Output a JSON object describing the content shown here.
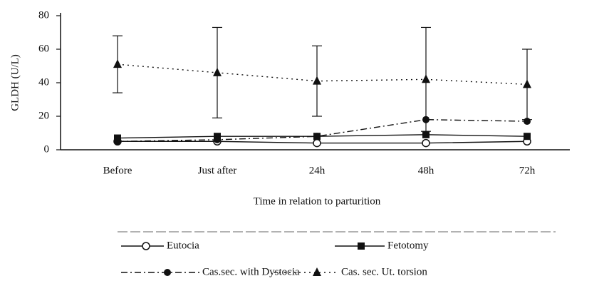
{
  "chart_data": {
    "type": "line",
    "y_label": "GLDH (U/L)",
    "x_label": "Time in relation to parturition",
    "categories": [
      "Before",
      "Just after",
      "24h",
      "48h",
      "72h"
    ],
    "ylim": [
      0,
      80
    ],
    "yticks": [
      0,
      20,
      40,
      60,
      80
    ],
    "series": [
      {
        "name": "Eutocia",
        "color": "#111111",
        "marker": "circle-open",
        "dash": "none",
        "values": [
          5,
          5,
          4,
          4,
          5
        ]
      },
      {
        "name": "Fetotomy",
        "color": "#111111",
        "marker": "square",
        "dash": "none",
        "values": [
          7,
          8,
          8,
          9,
          8
        ]
      },
      {
        "name": "Cas.sec. with Dystocia",
        "color": "#111111",
        "marker": "circle",
        "dash": "9,4,2,4",
        "values": [
          5,
          6,
          8,
          18,
          17
        ]
      },
      {
        "name": "Cas. sec. Ut. torsion",
        "color": "#111111",
        "marker": "triangle",
        "dash": "2,5",
        "values": [
          51,
          46,
          41,
          42,
          39
        ],
        "errors": [
          17,
          27,
          21,
          31,
          21
        ]
      }
    ]
  }
}
